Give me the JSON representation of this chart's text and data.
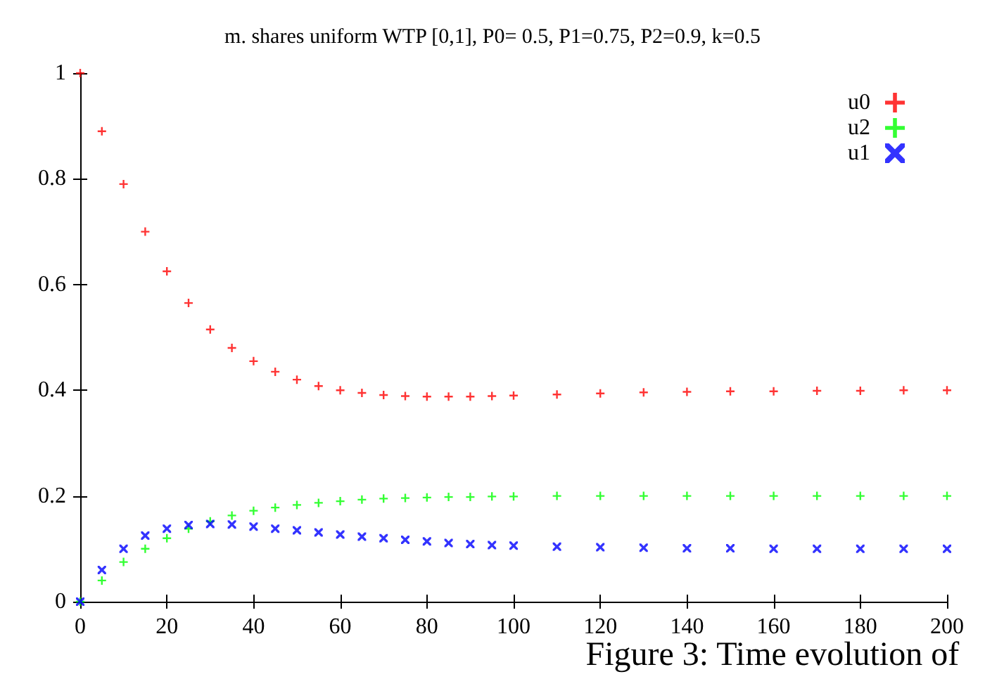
{
  "chart_data": {
    "type": "scatter",
    "title": "m. shares uniform WTP [0,1], P0= 0.5, P1=0.75, P2=0.9, k=0.5",
    "annotations": [
      "Figure 3: Time evolution of"
    ],
    "x": [
      0,
      5,
      10,
      15,
      20,
      25,
      30,
      35,
      40,
      45,
      50,
      55,
      60,
      65,
      70,
      75,
      80,
      85,
      90,
      95,
      100,
      110,
      120,
      130,
      140,
      150,
      160,
      170,
      180,
      190,
      200
    ],
    "series": [
      {
        "name": "u0",
        "color": "#ff0000",
        "marker": "cross",
        "values": [
          1.0,
          0.89,
          0.79,
          0.7,
          0.625,
          0.565,
          0.515,
          0.48,
          0.455,
          0.435,
          0.42,
          0.408,
          0.4,
          0.395,
          0.391,
          0.389,
          0.388,
          0.388,
          0.388,
          0.389,
          0.39,
          0.392,
          0.394,
          0.396,
          0.397,
          0.398,
          0.398,
          0.399,
          0.399,
          0.4,
          0.4
        ]
      },
      {
        "name": "u2",
        "color": "#00ff00",
        "marker": "cross",
        "values": [
          0,
          0.04,
          0.075,
          0.1,
          0.12,
          0.138,
          0.152,
          0.163,
          0.172,
          0.178,
          0.183,
          0.187,
          0.19,
          0.193,
          0.195,
          0.196,
          0.197,
          0.198,
          0.198,
          0.199,
          0.199,
          0.2,
          0.2,
          0.2,
          0.2,
          0.2,
          0.2,
          0.2,
          0.2,
          0.2,
          0.2
        ]
      },
      {
        "name": "u1",
        "color": "#0000ff",
        "marker": "star",
        "values": [
          0,
          0.06,
          0.1,
          0.125,
          0.138,
          0.145,
          0.147,
          0.146,
          0.142,
          0.138,
          0.135,
          0.131,
          0.127,
          0.123,
          0.12,
          0.117,
          0.114,
          0.111,
          0.109,
          0.107,
          0.106,
          0.104,
          0.103,
          0.102,
          0.101,
          0.101,
          0.1,
          0.1,
          0.1,
          0.1,
          0.1
        ]
      }
    ],
    "xlim": [
      0,
      200
    ],
    "xticks": [
      0,
      20,
      40,
      60,
      80,
      100,
      120,
      140,
      160,
      180,
      200
    ],
    "ylim": [
      0,
      1
    ],
    "yticks": [
      0,
      0.2,
      0.4,
      0.6,
      0.8,
      1
    ],
    "grid": false,
    "legend": "top right"
  }
}
